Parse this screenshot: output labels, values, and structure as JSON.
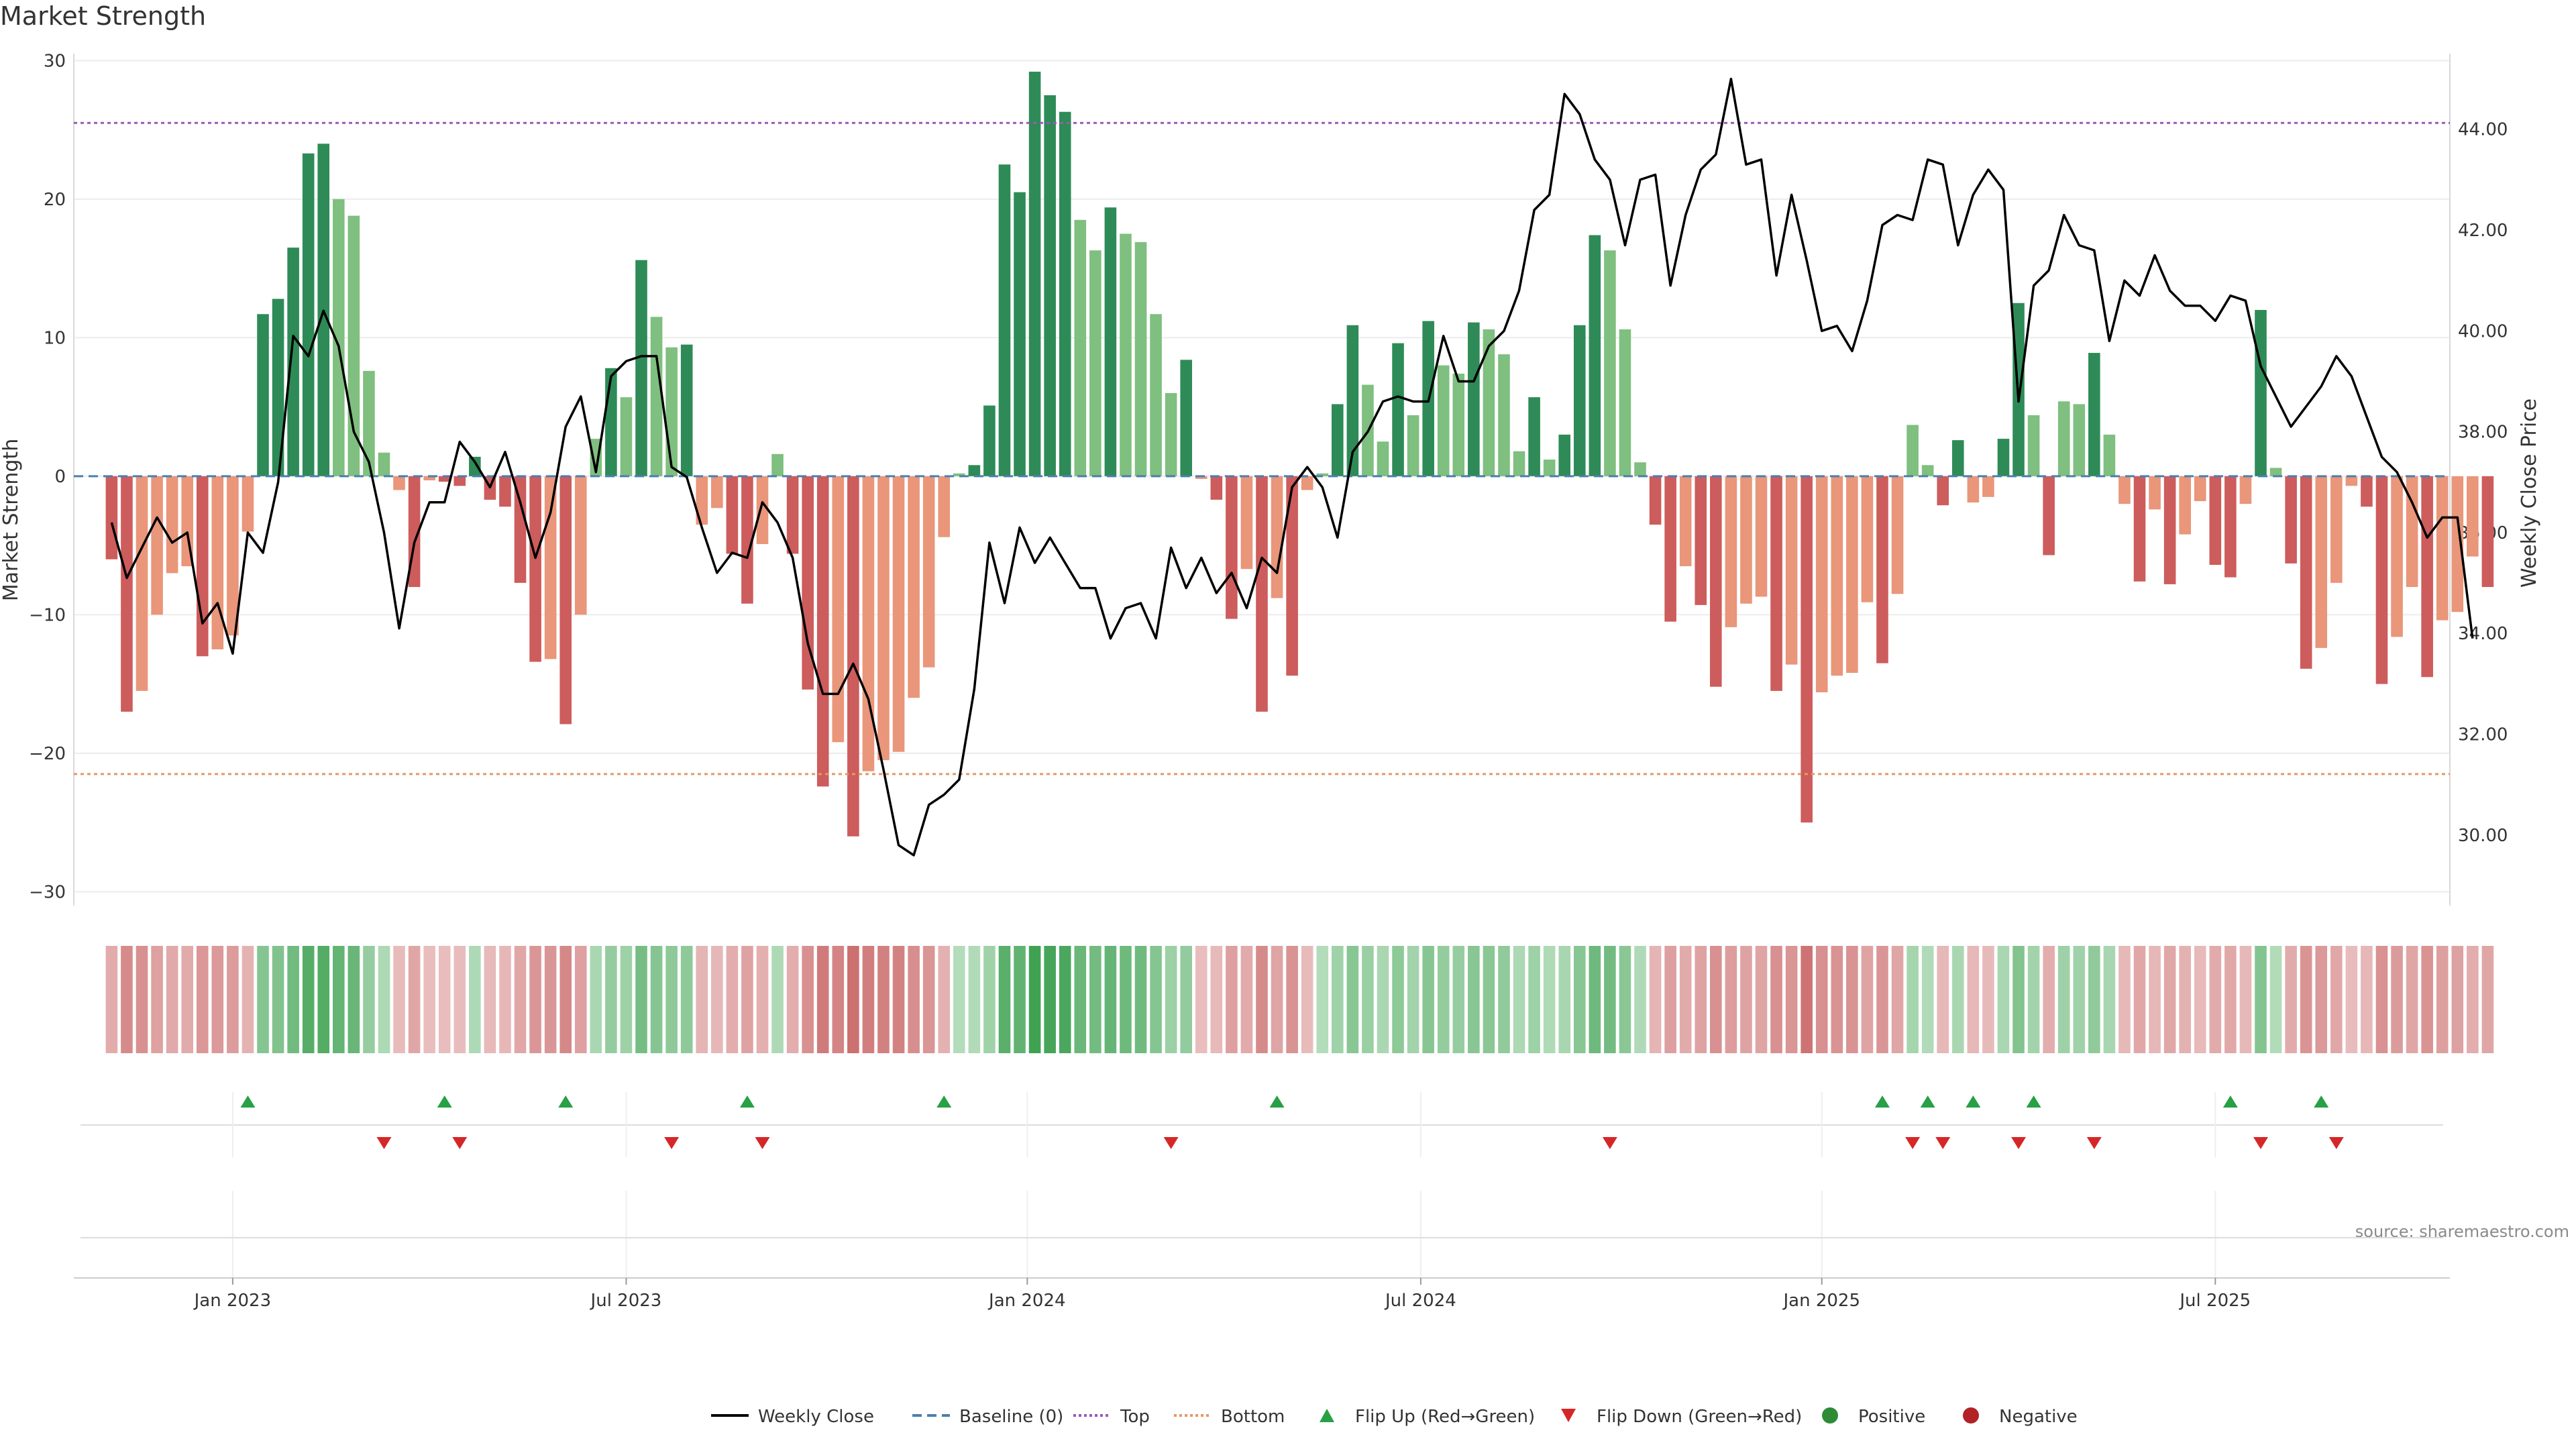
{
  "chart_data": {
    "type": "bar",
    "title": "Market Strength",
    "source": "source: sharemaestro.com",
    "ylabel_left": "Market Strength",
    "ylabel_right": "Weekly Close Price",
    "left_ylim": [
      -31,
      30.5
    ],
    "right_ylim": [
      28.6,
      45.5
    ],
    "left_ticks": [
      30,
      20,
      10,
      0,
      -10,
      -20,
      -30
    ],
    "left_tick_labels": [
      "30",
      "20",
      "10",
      "0",
      "−10",
      "−20",
      "−30"
    ],
    "right_ticks": [
      44,
      42,
      40,
      38,
      36,
      34,
      32,
      30
    ],
    "right_tick_labels": [
      "44.00",
      "42.00",
      "40.00",
      "38.00",
      "36.00",
      "34.00",
      "32.00",
      "30.00"
    ],
    "top_threshold": 25.5,
    "bottom_threshold": -21.5,
    "x_range_weeks": [
      -10.5,
      146.5
    ],
    "x_ticks": [
      {
        "label": "Jan 2023",
        "week": 0
      },
      {
        "label": "Jul 2023",
        "week": 26
      },
      {
        "label": "Jan 2024",
        "week": 52.5
      },
      {
        "label": "Jul 2024",
        "week": 78.5
      },
      {
        "label": "Jan 2025",
        "week": 105
      },
      {
        "label": "Jul 2025",
        "week": 131
      }
    ],
    "series": [
      {
        "name": "Market Strength",
        "start_week": -8,
        "values": [
          -6,
          -17,
          -15.5,
          -10,
          -7,
          -6.5,
          -13,
          -12.5,
          -11.5,
          -4,
          11.7,
          12.8,
          16.5,
          23.3,
          24,
          20,
          18.8,
          7.6,
          1.7,
          -1,
          -8,
          -0.3,
          -0.4,
          -0.7,
          1.4,
          -1.7,
          -2.2,
          -7.7,
          -13.4,
          -13.2,
          -17.9,
          -10,
          2.7,
          7.8,
          5.7,
          15.6,
          11.5,
          9.3,
          9.5,
          -3.5,
          -2.3,
          -5.6,
          -9.2,
          -4.9,
          1.6,
          -5.6,
          -15.4,
          -22.4,
          -19.2,
          -26,
          -21.3,
          -20.5,
          -19.9,
          -16,
          -13.8,
          -4.4,
          0.2,
          0.8,
          5.1,
          22.5,
          20.5,
          29.2,
          27.5,
          26.3,
          18.5,
          16.3,
          19.4,
          17.5,
          16.9,
          11.7,
          6,
          8.4,
          -0.2,
          -1.7,
          -10.3,
          -6.7,
          -17,
          -8.8,
          -14.4,
          -1,
          0.2,
          5.2,
          10.9,
          6.6,
          2.5,
          9.6,
          4.4,
          11.2,
          8,
          7.4,
          11.1,
          10.6,
          8.8,
          1.8,
          5.7,
          1.2,
          3,
          10.9,
          17.4,
          16.3,
          10.6,
          1,
          -3.5,
          -10.5,
          -6.5,
          -9.3,
          -15.2,
          -10.9,
          -9.2,
          -8.7,
          -15.5,
          -13.6,
          -25,
          -15.6,
          -14.4,
          -14.2,
          -9.1,
          -13.5,
          -8.5,
          3.7,
          0.8,
          -2.1,
          2.6,
          -1.9,
          -1.5,
          2.7,
          12.5,
          4.4,
          -5.7,
          5.4,
          5.2,
          8.9,
          3,
          -2,
          -7.6,
          -2.4,
          -7.8,
          -4.2,
          -1.8,
          -6.4,
          -7.3,
          -2,
          12,
          0.6,
          -6.3,
          -13.9,
          -12.4,
          -7.7,
          -0.7,
          -2.2,
          -15,
          -11.6,
          -8,
          -14.5,
          -10.4,
          -9.8,
          -5.8,
          -8
        ]
      },
      {
        "name": "Weekly Close",
        "start_week": -8,
        "values": [
          36.2,
          35.1,
          35.7,
          36.3,
          35.8,
          36,
          34.2,
          34.6,
          33.6,
          36,
          35.6,
          37,
          39.9,
          39.5,
          40.4,
          39.7,
          38,
          37.4,
          36,
          34.1,
          35.8,
          36.6,
          36.6,
          37.8,
          37.4,
          36.9,
          37.6,
          36.6,
          35.5,
          36.4,
          38.1,
          38.7,
          37.2,
          39.1,
          39.4,
          39.5,
          39.5,
          37.3,
          37.1,
          36.1,
          35.2,
          35.6,
          35.5,
          36.6,
          36.2,
          35.5,
          33.8,
          32.8,
          32.8,
          33.4,
          32.7,
          31.3,
          29.8,
          29.6,
          30.6,
          30.8,
          31.1,
          32.9,
          35.8,
          34.6,
          36.1,
          35.4,
          35.9,
          35.4,
          34.9,
          34.9,
          33.9,
          34.5,
          34.6,
          33.9,
          35.7,
          34.9,
          35.5,
          34.8,
          35.2,
          34.5,
          35.5,
          35.2,
          36.9,
          37.3,
          36.9,
          35.9,
          37.6,
          38,
          38.6,
          38.7,
          38.6,
          38.6,
          39.9,
          39,
          39,
          39.7,
          40,
          40.8,
          42.4,
          42.7,
          44.7,
          44.3,
          43.4,
          43,
          41.7,
          43,
          43.1,
          40.9,
          42.3,
          43.2,
          43.5,
          45,
          43.3,
          43.4,
          41.1,
          42.7,
          41.4,
          40,
          40.1,
          39.6,
          40.6,
          42.1,
          42.3,
          42.2,
          43.4,
          43.3,
          41.7,
          42.7,
          43.2,
          42.8,
          38.6,
          40.9,
          41.2,
          42.3,
          41.7,
          41.6,
          39.8,
          41,
          40.7,
          41.5,
          40.8,
          40.5,
          40.5,
          40.2,
          40.7,
          40.6,
          39.3,
          38.7,
          38.1,
          38.5,
          38.9,
          39.5,
          39.1,
          38.3,
          37.5,
          37.2,
          36.6,
          35.9,
          36.3,
          36.3,
          33.9
        ]
      }
    ],
    "flip_up_weeks": [
      1,
      14,
      22,
      34,
      47,
      69,
      109,
      112,
      115,
      119,
      132,
      138
    ],
    "flip_down_weeks": [
      10,
      15,
      29,
      35,
      62,
      91,
      111,
      113,
      118,
      123,
      134,
      139
    ],
    "legend": [
      {
        "label": "Weekly Close",
        "symbol": "solid-line",
        "color": "#000000"
      },
      {
        "label": "Baseline (0)",
        "symbol": "dashed-line",
        "color": "#4a7fb0"
      },
      {
        "label": "Top",
        "symbol": "dotted-line",
        "color": "#9b59b6"
      },
      {
        "label": "Bottom",
        "symbol": "dotted-line",
        "color": "#e59866"
      },
      {
        "label": "Flip Up (Red→Green)",
        "symbol": "triangle-up",
        "color": "#27a046"
      },
      {
        "label": "Flip Down (Green→Red)",
        "symbol": "triangle-down",
        "color": "#d62728"
      },
      {
        "label": "Positive",
        "symbol": "circle",
        "color": "#2e8b35"
      },
      {
        "label": "Negative",
        "symbol": "circle",
        "color": "#b22226"
      }
    ]
  }
}
